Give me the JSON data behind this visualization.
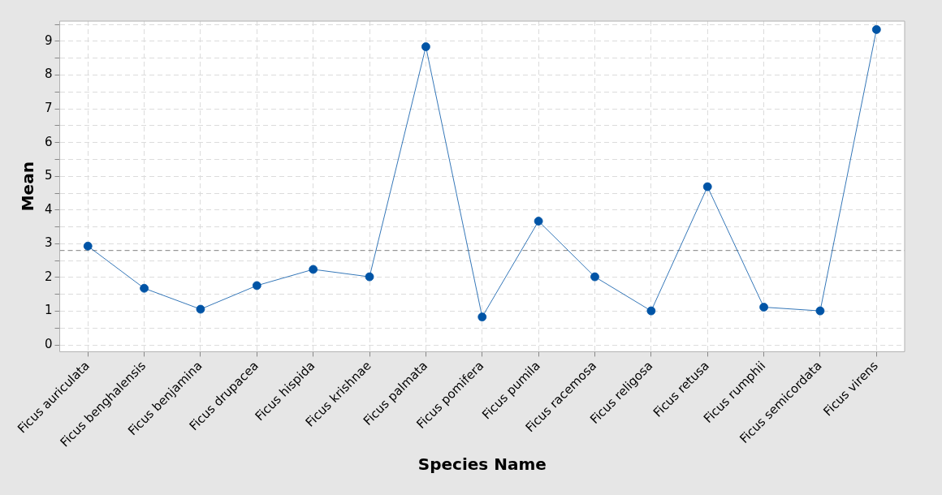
{
  "chart_data": {
    "type": "line",
    "xlabel": "Species Name",
    "ylabel": "Mean",
    "categories": [
      "Ficus auriculata",
      "Ficus benghalensis",
      "Ficus benjamina",
      "Ficus drupacea",
      "Ficus hispida",
      "Ficus krishnae",
      "Ficus palmata",
      "Ficus pomifera",
      "Ficus pumila",
      "Ficus racemosa",
      "Ficus religosa",
      "Ficus retusa",
      "Ficus rumphii",
      "Ficus semicordata",
      "Ficus virens"
    ],
    "series": [
      {
        "color": "#0054a6",
        "values": [
          2.93,
          1.68,
          1.06,
          1.76,
          2.24,
          2.02,
          8.84,
          0.83,
          3.67,
          2.02,
          1.01,
          4.69,
          1.12,
          1.01,
          9.35
        ]
      }
    ],
    "ylim": [
      -0.2,
      9.6
    ],
    "yticks": [
      0,
      {
        "value": 0.5,
        "label": null
      },
      1,
      {
        "value": 1.5,
        "label": null
      },
      2,
      {
        "value": 2.5,
        "label": null
      },
      3,
      {
        "value": 3.5,
        "label": null
      },
      4,
      {
        "value": 4.5,
        "label": null
      },
      5,
      {
        "value": 5.5,
        "label": null
      },
      6,
      {
        "value": 6.5,
        "label": null
      },
      7,
      {
        "value": 7.5,
        "label": null
      },
      8,
      {
        "value": 8.5,
        "label": null
      },
      9,
      {
        "value": 9.5,
        "label": null
      }
    ],
    "ref_lines": [
      {
        "axis": "y",
        "value": 2.8,
        "color": "#7f7f7f",
        "line_style": "dashed"
      }
    ],
    "grid": true,
    "legend": false,
    "marker": "circle",
    "line_style": "solid"
  }
}
